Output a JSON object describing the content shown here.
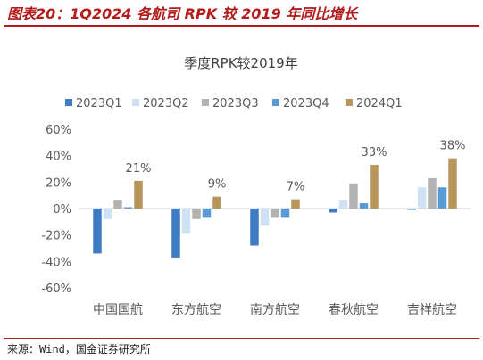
{
  "figure": {
    "title": "图表20：1Q2024 各航司 RPK 较 2019 年同比增长",
    "source": "来源：Wind，国金证券研究所"
  },
  "chart_data": {
    "type": "bar",
    "title": "季度RPK较2019年",
    "xlabel": "",
    "ylabel": "",
    "categories": [
      "中国国航",
      "东方航空",
      "南方航空",
      "春秋航空",
      "吉祥航空"
    ],
    "series": [
      {
        "name": "2023Q1",
        "color": "#3f7cc4",
        "values": [
          -34,
          -37,
          -28,
          -3,
          -1
        ]
      },
      {
        "name": "2023Q2",
        "color": "#cfe2f3",
        "values": [
          -8,
          -19,
          -13,
          6,
          16
        ]
      },
      {
        "name": "2023Q3",
        "color": "#b3b3b3",
        "values": [
          6,
          -8,
          -7,
          19,
          23
        ]
      },
      {
        "name": "2023Q4",
        "color": "#5b9bd5",
        "values": [
          1,
          -7,
          -7,
          4,
          16
        ]
      },
      {
        "name": "2024Q1",
        "color": "#b8955a",
        "values": [
          21,
          9,
          7,
          33,
          38
        ]
      }
    ],
    "data_labels": [
      {
        "category": "中国国航",
        "series": "2024Q1",
        "text": "21%"
      },
      {
        "category": "东方航空",
        "series": "2024Q1",
        "text": "9%"
      },
      {
        "category": "南方航空",
        "series": "2024Q1",
        "text": "7%"
      },
      {
        "category": "春秋航空",
        "series": "2024Q1",
        "text": "33%"
      },
      {
        "category": "吉祥航空",
        "series": "2024Q1",
        "text": "38%"
      }
    ],
    "yticks": [
      "-60%",
      "-40%",
      "-20%",
      "0%",
      "20%",
      "40%",
      "60%"
    ],
    "ytick_values": [
      -60,
      -40,
      -20,
      0,
      20,
      40,
      60
    ],
    "ylim": [
      -60,
      60
    ],
    "grid": false,
    "legend_position": "top"
  }
}
